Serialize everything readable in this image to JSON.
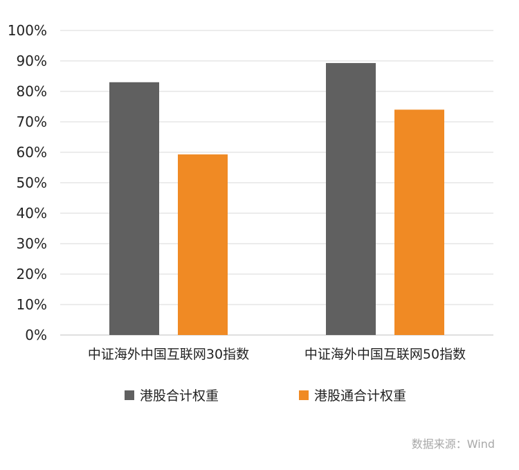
{
  "chart_data": {
    "type": "bar",
    "categories": [
      "中证海外中国互联网30指数",
      "中证海外中国互联网50指数"
    ],
    "series": [
      {
        "name": "港股合计权重",
        "values": [
          83,
          89.3
        ],
        "color": "#606060"
      },
      {
        "name": "港股通合计权重",
        "values": [
          59.3,
          74
        ],
        "color": "#F08A24"
      }
    ],
    "ylim": [
      0,
      100
    ],
    "yticks": [
      0,
      10,
      20,
      30,
      40,
      50,
      60,
      70,
      80,
      90,
      100
    ],
    "ytick_format": "percent",
    "grid": true,
    "legend_position": "bottom",
    "title": "",
    "xlabel": "",
    "ylabel": ""
  },
  "legend": {
    "items": [
      {
        "label": "港股合计权重",
        "color": "#606060"
      },
      {
        "label": "港股通合计权重",
        "color": "#F08A24"
      }
    ]
  },
  "source": "数据来源：Wind"
}
